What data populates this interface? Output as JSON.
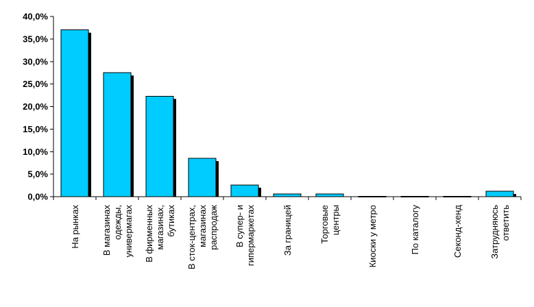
{
  "chart_data": {
    "type": "bar",
    "categories": [
      [
        "На рынках"
      ],
      [
        "В магазинах",
        "одежды,",
        "универмагах"
      ],
      [
        "В фирменных",
        "магазинах,",
        "бутиках"
      ],
      [
        "В сток-центрах,",
        "магазинах",
        "распродаж"
      ],
      [
        "В супер- и",
        "гипермаркетах"
      ],
      [
        "За границей"
      ],
      [
        "Торговые",
        "центры"
      ],
      [
        "Киоски у метро"
      ],
      [
        "По каталогу"
      ],
      [
        "Секонд-хенд"
      ],
      [
        "Затрудняюсь",
        "ответить"
      ]
    ],
    "values": [
      37.0,
      27.5,
      22.3,
      8.5,
      2.6,
      0.6,
      0.6,
      0.1,
      0.1,
      0.1,
      1.2
    ],
    "ylim": [
      0,
      40
    ],
    "yticks": [
      "0,0%",
      "5,0%",
      "10,0%",
      "15,0%",
      "20,0%",
      "25,0%",
      "30,0%",
      "35,0%",
      "40,0%"
    ],
    "bar_color": "#00ccff",
    "shadow_color": "#000000",
    "grid": false,
    "legend": "none",
    "title": "",
    "xlabel": "",
    "ylabel": ""
  }
}
